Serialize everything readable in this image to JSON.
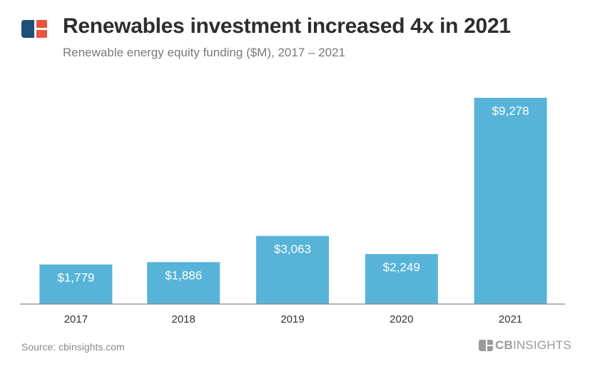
{
  "header": {
    "title": "Renewables investment increased 4x in 2021",
    "subtitle": "Renewable energy equity funding ($M), 2017 – 2021"
  },
  "footer": {
    "source": "Source: cbinsights.com",
    "brand_cb": "CB",
    "brand_rest": "INSIGHTS"
  },
  "colors": {
    "bar": "#57b4d8",
    "axis": "#8a8a8a",
    "label_inside": "#ffffff",
    "tick_label": "#333333",
    "logo_blue": "#1f4e79",
    "logo_orange": "#e8553e"
  },
  "chart_data": {
    "type": "bar",
    "title": "Renewables investment increased 4x in 2021",
    "subtitle": "Renewable energy equity funding ($M), 2017 – 2021",
    "categories": [
      "2017",
      "2018",
      "2019",
      "2020",
      "2021"
    ],
    "values": [
      1779,
      1886,
      3063,
      2249,
      9278
    ],
    "value_labels": [
      "$1,779",
      "$1,886",
      "$3,063",
      "$2,249",
      "$9,278"
    ],
    "ylim": [
      0,
      9278
    ],
    "grid": false,
    "legend": "none",
    "xlabel": "",
    "ylabel": ""
  }
}
